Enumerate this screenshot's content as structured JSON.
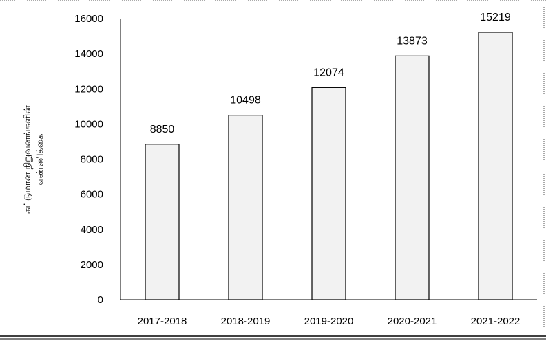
{
  "chart_data": {
    "type": "bar",
    "title": "",
    "xlabel": "",
    "ylabel_lines": [
      "கட்டுமான நிறுவனங்களின்",
      "எண்ணிக்கை"
    ],
    "categories": [
      "2017-2018",
      "2018-2019",
      "2019-2020",
      "2020-2021",
      "2021-2022"
    ],
    "values": [
      8850,
      10498,
      12074,
      13873,
      15219
    ],
    "data_labels": [
      "8850",
      "10498",
      "12074",
      "13873",
      "15219"
    ],
    "ylim": [
      0,
      16000
    ],
    "yticks": [
      0,
      2000,
      4000,
      6000,
      8000,
      10000,
      12000,
      14000,
      16000
    ],
    "ytick_labels": [
      "0",
      "2000",
      "4000",
      "6000",
      "8000",
      "10000",
      "12000",
      "14000",
      "16000"
    ],
    "grid": false,
    "legend": "none",
    "bar_fill": "#f2f2f2",
    "bar_stroke": "#000000"
  }
}
